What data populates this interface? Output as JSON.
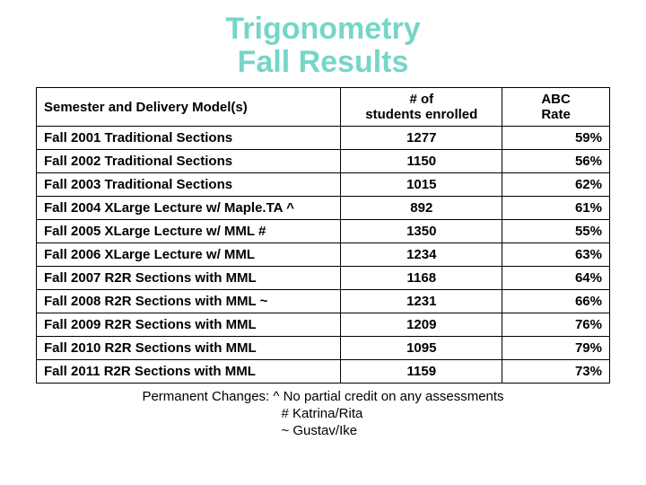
{
  "title_line1": "Trigonometry",
  "title_line2": "Fall Results",
  "columns": {
    "model": "Semester and Delivery Model(s)",
    "students_l1": "# of",
    "students_l2": "students enrolled",
    "rate_l1": "ABC",
    "rate_l2": "Rate"
  },
  "rows": [
    {
      "model": "Fall 2001  Traditional Sections",
      "students": "1277",
      "rate": "59%"
    },
    {
      "model": "Fall 2002  Traditional Sections",
      "students": "1150",
      "rate": "56%"
    },
    {
      "model": "Fall 2003  Traditional Sections",
      "students": "1015",
      "rate": "62%"
    },
    {
      "model": "Fall 2004  XLarge Lecture w/ Maple.TA  ^",
      "students": "892",
      "rate": "61%"
    },
    {
      "model": "Fall 2005  XLarge Lecture w/ MML #",
      "students": "1350",
      "rate": "55%"
    },
    {
      "model": "Fall 2006  XLarge Lecture w/ MML",
      "students": "1234",
      "rate": "63%"
    },
    {
      "model": "Fall 2007  R2R Sections with MML",
      "students": "1168",
      "rate": "64%"
    },
    {
      "model": "Fall 2008  R2R Sections with MML ~",
      "students": "1231",
      "rate": "66%"
    },
    {
      "model": "Fall 2009  R2R Sections with MML",
      "students": "1209",
      "rate": "76%"
    },
    {
      "model": "Fall 2010  R2R Sections with MML",
      "students": "1095",
      "rate": "79%"
    },
    {
      "model": "Fall 2011  R2R Sections with MML",
      "students": "1159",
      "rate": "73%"
    }
  ],
  "footnote": {
    "label": "Permanent Changes:",
    "l1": "^  No partial credit on any assessments",
    "l2": "#  Katrina/Rita",
    "l3": "~  Gustav/Ike"
  },
  "style": {
    "title_color": "#75d6c8",
    "border_color": "#000000",
    "col_widths": {
      "model": 340,
      "students": 180,
      "rate": 120
    }
  }
}
